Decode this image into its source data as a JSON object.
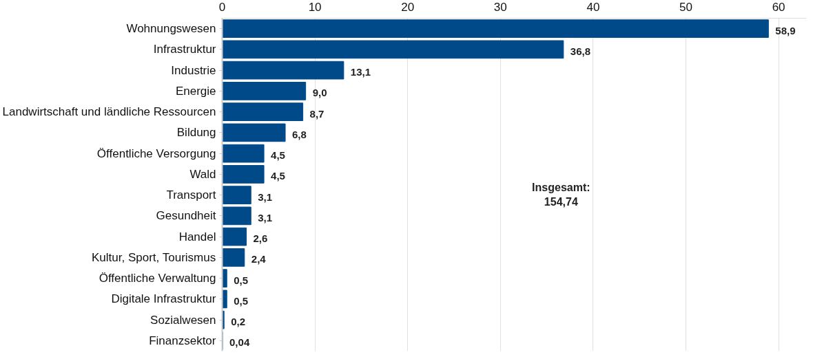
{
  "chart_data": {
    "type": "bar",
    "orientation": "horizontal",
    "categories": [
      "Wohnungswesen",
      "Infrastruktur",
      "Industrie",
      "Energie",
      "Landwirtschaft und ländliche Ressourcen",
      "Bildung",
      "Öffentliche Versorgung",
      "Wald",
      "Transport",
      "Gesundheit",
      "Handel",
      "Kultur, Sport, Tourismus",
      "Öffentliche Verwaltung",
      "Digitale Infrastruktur",
      "Sozialwesen",
      "Finanzsektor"
    ],
    "values": [
      58.9,
      36.8,
      13.1,
      9.0,
      8.7,
      6.8,
      4.5,
      4.5,
      3.1,
      3.1,
      2.6,
      2.4,
      0.5,
      0.5,
      0.2,
      0.04
    ],
    "value_labels": [
      "58,9",
      "36,8",
      "13,1",
      "9,0",
      "8,7",
      "6,8",
      "4,5",
      "4,5",
      "3,1",
      "3,1",
      "2,6",
      "2,4",
      "0,5",
      "0,5",
      "0,2",
      "0,04"
    ],
    "color": "#004a8a",
    "xlim": [
      0,
      63
    ],
    "xticks": [
      0,
      10,
      20,
      30,
      40,
      50,
      60
    ],
    "grid": "x",
    "annotations": [
      "Insgesamt:\n154,74"
    ]
  }
}
